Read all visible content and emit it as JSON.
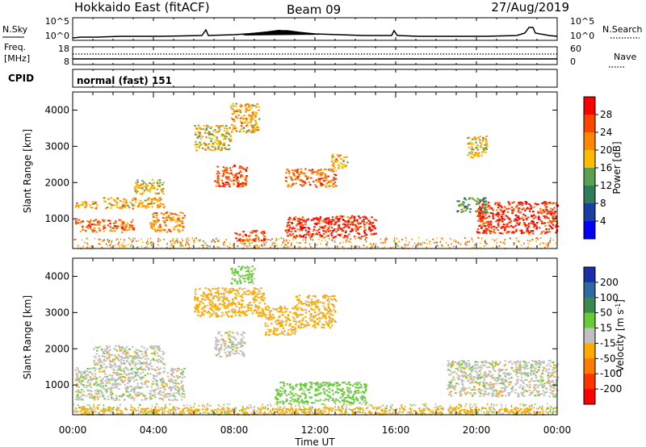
{
  "header": {
    "station": "Hokkaido East (fitACF)",
    "beam": "Beam 09",
    "date": "27/Aug/2019"
  },
  "nsky_panel": {
    "left_label": "N.Sky",
    "left_ticks": [
      "10^5",
      "10^0"
    ],
    "right_ticks": [
      "10^5",
      "10^0"
    ],
    "right_label": "N.Search"
  },
  "freq_panel": {
    "left_label_1": "Freq.",
    "left_label_2": "[MHz]",
    "left_ticks": [
      "18",
      "8"
    ],
    "right_ticks": [
      "60",
      "0"
    ],
    "right_label": "Nave"
  },
  "cpid_panel": {
    "label": "CPID",
    "program": "normal (fast) 151"
  },
  "power_colorbar": {
    "label": "Power [dB]",
    "ticks": [
      "28",
      "24",
      "20",
      "16",
      "12",
      "8",
      "4"
    ],
    "colors": [
      "#ff0000",
      "#ff4400",
      "#ff8800",
      "#ffbb00",
      "#5aa050",
      "#2e7d5a",
      "#1a3fa0",
      "#0000ff"
    ]
  },
  "velocity_colorbar": {
    "label": "Velocity [m s",
    "label_sup": "-1",
    "label_end": "]",
    "ticks": [
      "200",
      "100",
      "50",
      "15",
      "-15",
      "-50",
      "-100",
      "-200"
    ],
    "colors": [
      "#1a2fa8",
      "#2e6aa0",
      "#3a8a50",
      "#66cc33",
      "#c0c0c0",
      "#ffaa00",
      "#ff7a00",
      "#ff3300",
      "#ff0000"
    ]
  },
  "x_axis": {
    "label": "Time UT",
    "ticks": [
      "00:00",
      "04:00",
      "08:00",
      "12:00",
      "16:00",
      "20:00",
      "00:00"
    ]
  },
  "chart_data": [
    {
      "type": "heatmap",
      "name": "power",
      "ylabel": "Slant Range [km]",
      "xlabel": "",
      "xlim": [
        0,
        24
      ],
      "ylim": [
        180,
        4500
      ],
      "yticks": [
        1000,
        2000,
        3000,
        4000
      ],
      "regions": [
        {
          "t0": 0.1,
          "t1": 3.0,
          "r0": 650,
          "r1": 1000,
          "level": 24
        },
        {
          "t0": 0.1,
          "t1": 1.2,
          "r0": 1300,
          "r1": 1500,
          "level": 20
        },
        {
          "t0": 1.5,
          "t1": 4.5,
          "r0": 1300,
          "r1": 1600,
          "level": 20
        },
        {
          "t0": 3.0,
          "t1": 4.5,
          "r0": 1700,
          "r1": 2100,
          "level": 18
        },
        {
          "t0": 3.8,
          "t1": 5.5,
          "r0": 650,
          "r1": 1200,
          "level": 22
        },
        {
          "t0": 6.0,
          "t1": 7.8,
          "r0": 2900,
          "r1": 3600,
          "level": 18
        },
        {
          "t0": 7.8,
          "t1": 9.2,
          "r0": 3400,
          "r1": 4200,
          "level": 20
        },
        {
          "t0": 7.0,
          "t1": 8.6,
          "r0": 1900,
          "r1": 2500,
          "level": 26
        },
        {
          "t0": 8.0,
          "t1": 9.5,
          "r0": 400,
          "r1": 700,
          "level": 26
        },
        {
          "t0": 10.5,
          "t1": 15.0,
          "r0": 500,
          "r1": 1100,
          "level": 28
        },
        {
          "t0": 10.5,
          "t1": 13.0,
          "r0": 1900,
          "r1": 2400,
          "level": 24
        },
        {
          "t0": 12.8,
          "t1": 13.6,
          "r0": 2400,
          "r1": 2800,
          "level": 20
        },
        {
          "t0": 19.5,
          "t1": 20.5,
          "r0": 2700,
          "r1": 3300,
          "level": 18
        },
        {
          "t0": 20.0,
          "t1": 24.0,
          "r0": 600,
          "r1": 1500,
          "level": 28
        },
        {
          "t0": 19.0,
          "t1": 20.5,
          "r0": 1200,
          "r1": 1600,
          "level": 12
        }
      ]
    },
    {
      "type": "heatmap",
      "name": "velocity",
      "ylabel": "Slant Range [km]",
      "xlabel": "Time UT",
      "xlim": [
        0,
        24
      ],
      "ylim": [
        180,
        4500
      ],
      "yticks": [
        1000,
        2000,
        3000,
        4000
      ],
      "regions": [
        {
          "t0": 0.1,
          "t1": 5.5,
          "r0": 600,
          "r1": 1500,
          "level": 0
        },
        {
          "t0": 1.0,
          "t1": 4.5,
          "r0": 1500,
          "r1": 2100,
          "level": 0
        },
        {
          "t0": 6.0,
          "t1": 9.5,
          "r0": 2900,
          "r1": 3700,
          "level": -30
        },
        {
          "t0": 7.8,
          "t1": 9.0,
          "r0": 3800,
          "r1": 4300,
          "level": 30
        },
        {
          "t0": 7.0,
          "t1": 8.5,
          "r0": 1800,
          "r1": 2500,
          "level": 0
        },
        {
          "t0": 9.5,
          "t1": 11.0,
          "r0": 2400,
          "r1": 3200,
          "level": -30
        },
        {
          "t0": 11.0,
          "t1": 13.0,
          "r0": 2600,
          "r1": 3500,
          "level": -30
        },
        {
          "t0": 10.0,
          "t1": 14.5,
          "r0": 500,
          "r1": 1100,
          "level": 30
        },
        {
          "t0": 18.5,
          "t1": 24.0,
          "r0": 700,
          "r1": 1700,
          "level": 0
        },
        {
          "t0": 0.1,
          "t1": 24.0,
          "r0": 200,
          "r1": 400,
          "level": -30
        }
      ]
    }
  ]
}
